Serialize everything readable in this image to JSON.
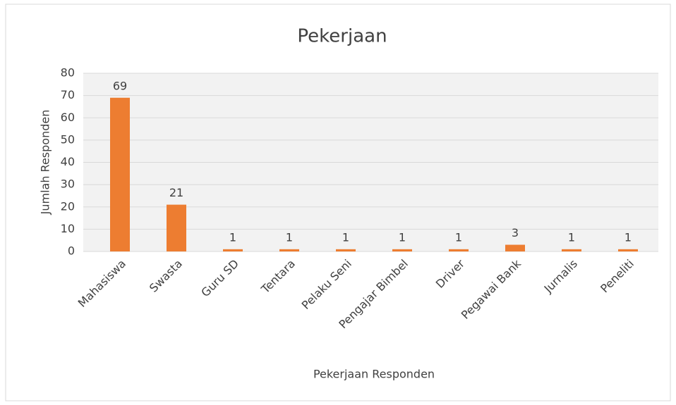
{
  "chart_data": {
    "type": "bar",
    "title": "Pekerjaan",
    "x_label": "Pekerjaan Responden",
    "y_label": "Jumlah Responden",
    "categories": [
      "Mahasiswa",
      "Swasta",
      "Guru SD",
      "Tentara",
      "Pelaku Seni",
      "Pengajar Bimbel",
      "Driver",
      "Pegawai Bank",
      "Jurnalis",
      "Peneliti"
    ],
    "values": [
      69,
      21,
      1,
      1,
      1,
      1,
      1,
      3,
      1,
      1
    ],
    "color": "#ed7d31",
    "ylim": [
      0,
      80
    ],
    "yticks": [
      0,
      10,
      20,
      30,
      40,
      50,
      60,
      70,
      80
    ],
    "grid": true
  }
}
